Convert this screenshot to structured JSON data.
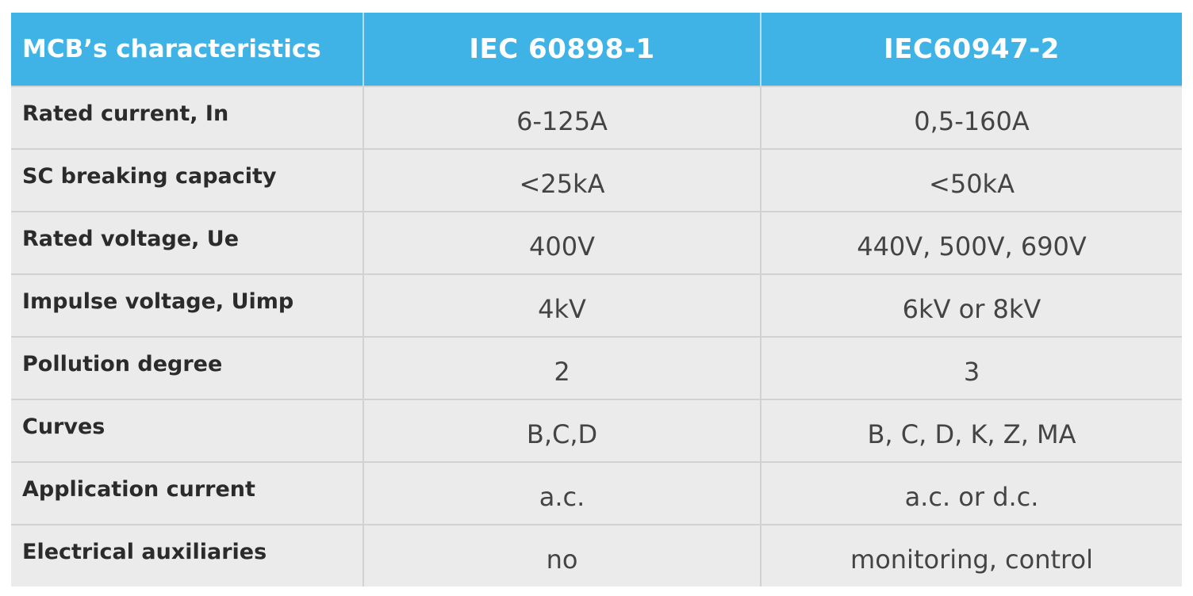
{
  "table": {
    "headers": [
      "MCB’s characteristics",
      "IEC 60898-1",
      "IEC60947-2"
    ],
    "rows": [
      [
        "Rated current, In",
        "6-125A",
        "0,5-160A"
      ],
      [
        "SC breaking capacity",
        "<25kA",
        "<50kA"
      ],
      [
        "Rated voltage, Ue",
        "400V",
        "440V, 500V, 690V"
      ],
      [
        "Impulse voltage, Uimp",
        "4kV",
        "6kV or 8kV"
      ],
      [
        "Pollution degree",
        "2",
        "3"
      ],
      [
        "Curves",
        "B,C,D",
        "B, C, D, K, Z, MA"
      ],
      [
        "Application current",
        "a.c.",
        "a.c. or d.c."
      ],
      [
        "Electrical auxiliaries",
        "no",
        "monitoring, control"
      ]
    ]
  },
  "colors": {
    "header_bg": "#3fb3e6",
    "row_bg": "#ebebeb",
    "grid": "#d2d2d2"
  }
}
